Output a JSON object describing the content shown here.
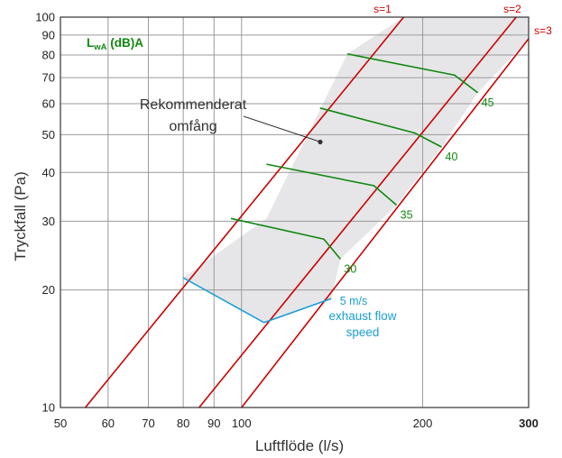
{
  "chart_data": {
    "type": "line",
    "xscale": "log",
    "yscale": "log",
    "xlim": [
      50,
      300
    ],
    "ylim": [
      10,
      100
    ],
    "grid": true,
    "xlabel": "Luftflöde (l/s)",
    "ylabel": "Tryckfall (Pa)",
    "xticks": [
      50,
      60,
      70,
      80,
      90,
      100,
      200,
      300
    ],
    "xtick_labels": [
      "50",
      "60",
      "70",
      "80",
      "90",
      "100",
      "200",
      "300"
    ],
    "yticks": [
      10,
      20,
      30,
      40,
      50,
      60,
      70,
      80,
      90,
      100
    ],
    "ytick_labels": [
      "10",
      "20",
      "30",
      "40",
      "50",
      "60",
      "70",
      "80",
      "90",
      "100"
    ],
    "legend_title": "LwA (dB)A",
    "recommended_label": [
      "Rekommenderat",
      "omfång"
    ],
    "recommended_region": [
      [
        80,
        21.5
      ],
      [
        110,
        30.5
      ],
      [
        150,
        80.5
      ],
      [
        186,
        100
      ],
      [
        300,
        100
      ],
      [
        300,
        88
      ],
      [
        247,
        64
      ],
      [
        215,
        46.5
      ],
      [
        181,
        33
      ],
      [
        146,
        24
      ],
      [
        141,
        19
      ],
      [
        109,
        16.5
      ],
      [
        80,
        21.5
      ]
    ],
    "series": [
      {
        "name": "s=1",
        "color": "#cc0000",
        "points": [
          [
            55,
            10
          ],
          [
            186,
            100
          ]
        ]
      },
      {
        "name": "s=2",
        "color": "#cc0000",
        "points": [
          [
            85,
            10
          ],
          [
            286,
            100
          ]
        ]
      },
      {
        "name": "s=3",
        "color": "#cc0000",
        "points": [
          [
            100,
            10
          ],
          [
            300,
            88
          ]
        ]
      }
    ],
    "sound_levels": {
      "color": "#118811",
      "lines": [
        {
          "name": "30",
          "points": [
            [
              96,
              30.5
            ],
            [
              137,
              27
            ],
            [
              146,
              24
            ]
          ]
        },
        {
          "name": "35",
          "points": [
            [
              110,
              42
            ],
            [
              166,
              37
            ],
            [
              181,
              33
            ]
          ]
        },
        {
          "name": "40",
          "points": [
            [
              135,
              58.5
            ],
            [
              194,
              50.5
            ],
            [
              215,
              46.5
            ]
          ]
        },
        {
          "name": "45",
          "points": [
            [
              150,
              80.5
            ],
            [
              226,
              71
            ],
            [
              247,
              64
            ]
          ]
        }
      ]
    },
    "exhaust_flow": {
      "name": "exhaust flow speed",
      "color": "#1a9ed6",
      "points": [
        [
          80,
          21.5
        ],
        [
          109,
          16.5
        ],
        [
          141,
          19
        ]
      ],
      "label": "5 m/s",
      "caption": [
        "exhaust flow",
        "speed"
      ]
    }
  }
}
